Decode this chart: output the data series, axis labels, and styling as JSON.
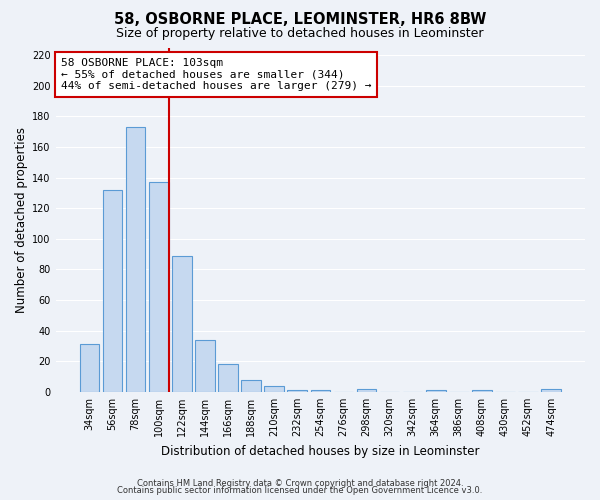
{
  "title": "58, OSBORNE PLACE, LEOMINSTER, HR6 8BW",
  "subtitle": "Size of property relative to detached houses in Leominster",
  "xlabel": "Distribution of detached houses by size in Leominster",
  "ylabel": "Number of detached properties",
  "bar_labels": [
    "34sqm",
    "56sqm",
    "78sqm",
    "100sqm",
    "122sqm",
    "144sqm",
    "166sqm",
    "188sqm",
    "210sqm",
    "232sqm",
    "254sqm",
    "276sqm",
    "298sqm",
    "320sqm",
    "342sqm",
    "364sqm",
    "386sqm",
    "408sqm",
    "430sqm",
    "452sqm",
    "474sqm"
  ],
  "bar_values": [
    31,
    132,
    173,
    137,
    89,
    34,
    18,
    8,
    4,
    1,
    1,
    0,
    2,
    0,
    0,
    1,
    0,
    1,
    0,
    0,
    2
  ],
  "bar_color": "#c6d9f0",
  "bar_edge_color": "#5b9bd5",
  "vline_color": "#cc0000",
  "annotation_title": "58 OSBORNE PLACE: 103sqm",
  "annotation_line1": "← 55% of detached houses are smaller (344)",
  "annotation_line2": "44% of semi-detached houses are larger (279) →",
  "annotation_box_color": "#ffffff",
  "annotation_box_edge": "#cc0000",
  "ylim": [
    0,
    225
  ],
  "yticks": [
    0,
    20,
    40,
    60,
    80,
    100,
    120,
    140,
    160,
    180,
    200,
    220
  ],
  "footer1": "Contains HM Land Registry data © Crown copyright and database right 2024.",
  "footer2": "Contains public sector information licensed under the Open Government Licence v3.0.",
  "bg_color": "#eef2f8",
  "plot_bg_color": "#eef2f8",
  "grid_color": "#ffffff",
  "title_fontsize": 10.5,
  "subtitle_fontsize": 9,
  "axis_label_fontsize": 8.5,
  "tick_fontsize": 7,
  "annotation_fontsize": 8,
  "footer_fontsize": 6
}
